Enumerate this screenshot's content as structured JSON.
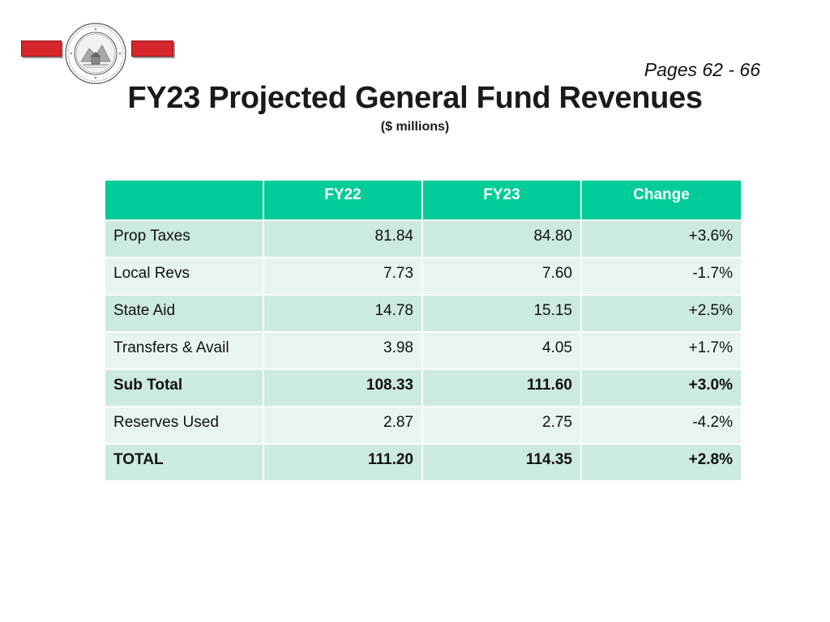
{
  "header": {
    "page_ref": "Pages 62 - 66",
    "title": "FY23 Projected General Fund Revenues",
    "subtitle": "($ millions)",
    "seal_icon": "town-seal-icon",
    "accent_color": "#d7262b"
  },
  "table": {
    "columns": [
      "",
      "FY22",
      "FY23",
      "Change"
    ],
    "header_color": "#00cc99",
    "rows": [
      {
        "label": "Prop Taxes",
        "fy22": "81.84",
        "fy23": "84.80",
        "change": "+3.6%",
        "bold": false
      },
      {
        "label": "Local Revs",
        "fy22": "7.73",
        "fy23": "7.60",
        "change": "-1.7%",
        "bold": false
      },
      {
        "label": "State Aid",
        "fy22": "14.78",
        "fy23": "15.15",
        "change": "+2.5%",
        "bold": false
      },
      {
        "label": "Transfers & Avail",
        "fy22": "3.98",
        "fy23": "4.05",
        "change": "+1.7%",
        "bold": false
      },
      {
        "label": "Sub Total",
        "fy22": "108.33",
        "fy23": "111.60",
        "change": "+3.0%",
        "bold": true
      },
      {
        "label": "Reserves Used",
        "fy22": "2.87",
        "fy23": "2.75",
        "change": "-4.2%",
        "bold": false
      },
      {
        "label": "TOTAL",
        "fy22": "111.20",
        "fy23": "114.35",
        "change": "+2.8%",
        "bold": true
      }
    ]
  }
}
